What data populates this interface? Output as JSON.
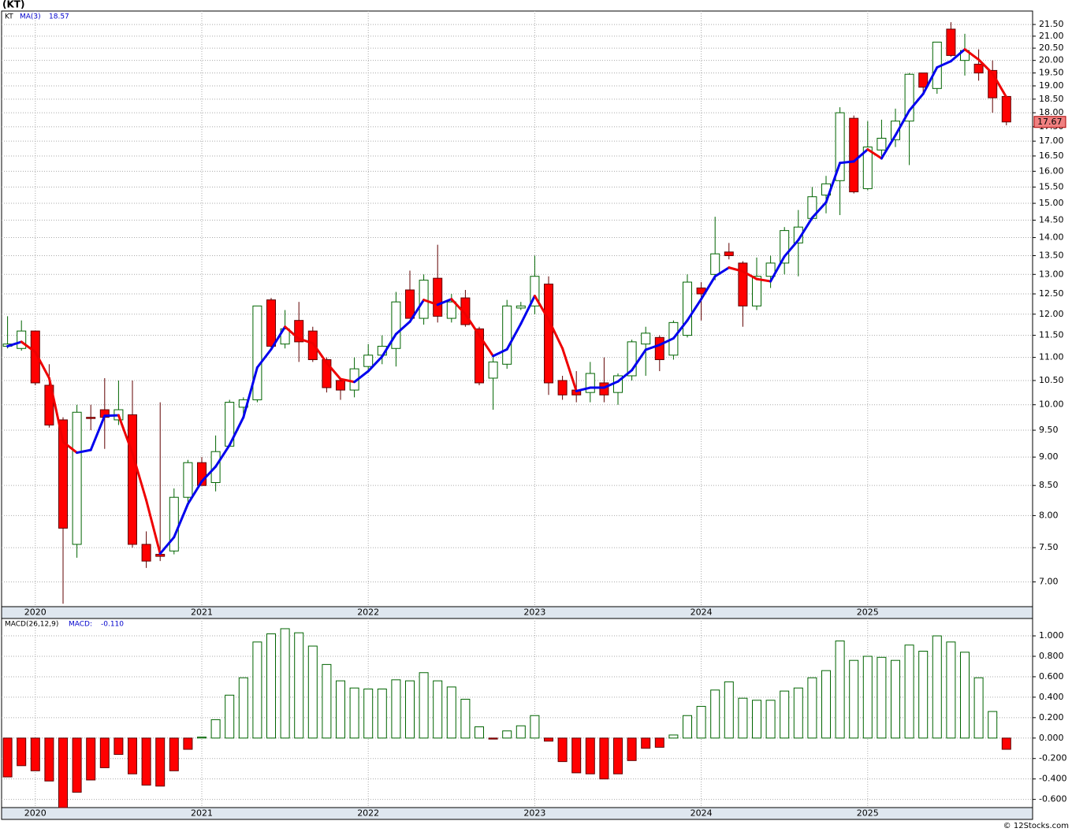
{
  "chart_data": [
    {
      "type": "candlestick",
      "title": "(KT)",
      "log_scale": true,
      "grid": true,
      "categories": [
        null,
        null,
        "2020",
        null,
        null,
        null,
        null,
        null,
        null,
        null,
        null,
        null,
        null,
        null,
        "2021",
        null,
        null,
        null,
        null,
        null,
        null,
        null,
        null,
        null,
        null,
        null,
        "2022",
        null,
        null,
        null,
        null,
        null,
        null,
        null,
        null,
        null,
        null,
        null,
        "2023",
        null,
        null,
        null,
        null,
        null,
        null,
        null,
        null,
        null,
        null,
        null,
        "2024",
        null,
        null,
        null,
        null,
        null,
        null,
        null,
        null,
        null,
        null,
        null,
        "2025",
        null,
        null,
        null,
        null,
        null,
        null,
        null,
        null,
        null,
        null
      ],
      "series": [
        {
          "name": "KT",
          "up_color": "#ffffff",
          "up_edge": "#006400",
          "down_color": "#ff0000",
          "down_edge": "#600000",
          "open": [
            11.25,
            11.2,
            11.6,
            10.4,
            9.7,
            7.55,
            9.75,
            9.9,
            9.7,
            9.8,
            7.55,
            7.4,
            7.45,
            8.3,
            8.9,
            8.55,
            9.2,
            9.95,
            10.1,
            12.35,
            11.3,
            11.85,
            11.6,
            10.95,
            10.5,
            10.3,
            10.8,
            11.05,
            11.2,
            12.6,
            11.9,
            12.9,
            11.9,
            12.4,
            11.65,
            10.55,
            10.85,
            12.15,
            12.2,
            12.75,
            10.5,
            10.3,
            10.25,
            10.45,
            10.25,
            10.6,
            11.3,
            11.45,
            11.05,
            11.5,
            12.65,
            13.0,
            13.6,
            13.3,
            12.2,
            12.95,
            13.3,
            13.85,
            14.55,
            15.25,
            15.7,
            17.8,
            15.45,
            16.7,
            17.05,
            17.7,
            19.5,
            18.9,
            21.3,
            20.0,
            19.85,
            19.6,
            18.6
          ],
          "high": [
            11.95,
            11.85,
            11.6,
            10.85,
            9.75,
            10.0,
            10.0,
            10.55,
            10.5,
            10.5,
            7.75,
            10.05,
            8.45,
            8.95,
            9.0,
            9.4,
            10.1,
            10.15,
            12.2,
            12.4,
            12.1,
            12.3,
            11.7,
            11.0,
            10.55,
            11.0,
            11.3,
            11.5,
            12.55,
            13.1,
            13.0,
            13.8,
            12.5,
            12.6,
            11.7,
            11.0,
            12.35,
            12.3,
            13.5,
            12.95,
            10.6,
            10.7,
            10.9,
            11.0,
            10.65,
            11.4,
            11.7,
            11.5,
            11.85,
            13.0,
            12.8,
            14.6,
            13.85,
            13.35,
            13.45,
            13.5,
            14.3,
            14.8,
            15.5,
            15.85,
            18.2,
            17.9,
            17.7,
            17.75,
            18.15,
            19.5,
            19.5,
            20.75,
            21.6,
            21.1,
            20.45,
            20.0,
            18.6
          ],
          "low": [
            11.2,
            11.15,
            10.4,
            9.55,
            6.7,
            7.35,
            9.5,
            9.15,
            9.6,
            7.5,
            7.2,
            7.3,
            7.4,
            8.2,
            8.5,
            8.4,
            9.2,
            9.75,
            10.05,
            11.2,
            11.2,
            10.9,
            10.9,
            10.25,
            10.1,
            10.15,
            10.7,
            10.85,
            10.8,
            11.9,
            11.75,
            11.8,
            11.8,
            11.7,
            10.4,
            9.9,
            10.75,
            12.1,
            12.0,
            10.2,
            10.1,
            10.05,
            10.05,
            10.05,
            10.0,
            10.5,
            10.6,
            10.7,
            10.95,
            11.45,
            11.85,
            12.85,
            13.4,
            11.7,
            12.1,
            12.65,
            13.0,
            12.95,
            14.5,
            14.7,
            14.65,
            15.3,
            15.4,
            16.5,
            16.8,
            16.2,
            18.7,
            18.7,
            20.15,
            19.4,
            19.2,
            18.0,
            17.55
          ],
          "close": [
            11.3,
            11.6,
            10.45,
            9.6,
            7.8,
            9.85,
            9.73,
            9.75,
            9.9,
            7.55,
            7.3,
            7.37,
            8.3,
            8.9,
            8.5,
            9.1,
            10.05,
            10.1,
            12.2,
            11.25,
            11.65,
            11.35,
            10.95,
            10.35,
            10.3,
            10.75,
            11.05,
            11.25,
            12.3,
            11.9,
            12.85,
            11.95,
            12.3,
            11.75,
            10.45,
            10.9,
            12.2,
            12.2,
            12.95,
            10.45,
            10.2,
            10.2,
            10.65,
            10.2,
            10.6,
            11.35,
            11.55,
            10.95,
            11.8,
            12.8,
            12.5,
            13.55,
            13.5,
            12.2,
            12.95,
            13.3,
            14.2,
            14.3,
            15.2,
            15.6,
            18.0,
            15.35,
            16.8,
            17.1,
            17.7,
            19.45,
            18.95,
            20.75,
            20.2,
            20.4,
            19.5,
            18.55,
            17.67
          ]
        },
        {
          "name": "MA(3)",
          "up_color": "#0000ee",
          "down_color": "#ee0000",
          "values": [
            11.25,
            11.35,
            11.12,
            10.55,
            9.28,
            9.08,
            9.13,
            9.78,
            9.79,
            9.07,
            8.25,
            7.41,
            7.66,
            8.19,
            8.57,
            8.83,
            9.22,
            9.75,
            10.78,
            11.18,
            11.7,
            11.42,
            11.32,
            10.88,
            10.53,
            10.47,
            10.7,
            11.02,
            11.53,
            11.82,
            12.35,
            12.23,
            12.37,
            12.0,
            11.5,
            11.03,
            11.18,
            11.77,
            12.45,
            11.87,
            11.2,
            10.28,
            10.35,
            10.35,
            10.48,
            10.72,
            11.17,
            11.28,
            11.43,
            11.85,
            12.37,
            12.95,
            13.18,
            13.08,
            12.88,
            12.82,
            13.48,
            13.93,
            14.57,
            15.03,
            16.27,
            16.32,
            16.72,
            16.42,
            17.2,
            18.08,
            18.7,
            19.72,
            19.97,
            20.45,
            20.03,
            19.48,
            18.57
          ]
        }
      ],
      "ylim": [
        6.66,
        22.09
      ],
      "yticks": [
        {
          "value": 7,
          "label": "7.00"
        },
        {
          "value": 7.5,
          "label": "7.50"
        },
        {
          "value": 8,
          "label": "8.00"
        },
        {
          "value": 8.5,
          "label": "8.50"
        },
        {
          "value": 9,
          "label": "9.00"
        },
        {
          "value": 9.5,
          "label": "9.50"
        },
        {
          "value": 10,
          "label": "10.00"
        },
        {
          "value": 10.5,
          "label": "10.50"
        },
        {
          "value": 11,
          "label": "11.00"
        },
        {
          "value": 11.5,
          "label": "11.50"
        },
        {
          "value": 12,
          "label": "12.00"
        },
        {
          "value": 12.5,
          "label": "12.50"
        },
        {
          "value": 13,
          "label": "13.00"
        },
        {
          "value": 13.5,
          "label": "13.50"
        },
        {
          "value": 14,
          "label": "14.00"
        },
        {
          "value": 14.5,
          "label": "14.50"
        },
        {
          "value": 15,
          "label": "15.00"
        },
        {
          "value": 15.5,
          "label": "15.50"
        },
        {
          "value": 16,
          "label": "16.00"
        },
        {
          "value": 16.5,
          "label": "16.50"
        },
        {
          "value": 17,
          "label": "17.00"
        },
        {
          "value": 17.5,
          "label": "17.50"
        },
        {
          "value": 18,
          "label": "18.00"
        },
        {
          "value": 18.5,
          "label": "18.50"
        },
        {
          "value": 19,
          "label": "19.00"
        },
        {
          "value": 19.5,
          "label": "19.50"
        },
        {
          "value": 20,
          "label": "20.00"
        },
        {
          "value": 20.5,
          "label": "20.50"
        },
        {
          "value": 21,
          "label": "21.00"
        },
        {
          "value": 21.5,
          "label": "21.50"
        }
      ]
    },
    {
      "type": "bar",
      "grid": true,
      "legend": [
        "MACD(26,12,9)",
        "MACD:",
        "-0.110"
      ],
      "categories": [
        null,
        null,
        "2020",
        null,
        null,
        null,
        null,
        null,
        null,
        null,
        null,
        null,
        null,
        null,
        "2021",
        null,
        null,
        null,
        null,
        null,
        null,
        null,
        null,
        null,
        null,
        null,
        "2022",
        null,
        null,
        null,
        null,
        null,
        null,
        null,
        null,
        null,
        null,
        null,
        "2023",
        null,
        null,
        null,
        null,
        null,
        null,
        null,
        null,
        null,
        null,
        null,
        "2024",
        null,
        null,
        null,
        null,
        null,
        null,
        null,
        null,
        null,
        null,
        null,
        "2025",
        null,
        null,
        null,
        null,
        null,
        null,
        null,
        null,
        null,
        null
      ],
      "positive_color": "#ffffff",
      "positive_edge": "#006400",
      "negative_color": "#ff0000",
      "negative_edge": "#600000",
      "values": [
        -0.38,
        -0.27,
        -0.32,
        -0.42,
        -0.68,
        -0.53,
        -0.41,
        -0.29,
        -0.16,
        -0.35,
        -0.46,
        -0.47,
        -0.32,
        -0.11,
        0.01,
        0.18,
        0.42,
        0.59,
        0.94,
        1.02,
        1.07,
        1.03,
        0.9,
        0.72,
        0.56,
        0.49,
        0.48,
        0.48,
        0.57,
        0.56,
        0.64,
        0.56,
        0.5,
        0.38,
        0.11,
        -0.01,
        0.07,
        0.12,
        0.22,
        -0.03,
        -0.23,
        -0.34,
        -0.35,
        -0.4,
        -0.35,
        -0.22,
        -0.1,
        -0.09,
        0.03,
        0.22,
        0.31,
        0.47,
        0.55,
        0.39,
        0.37,
        0.37,
        0.46,
        0.49,
        0.59,
        0.66,
        0.95,
        0.76,
        0.8,
        0.79,
        0.76,
        0.91,
        0.85,
        1.0,
        0.94,
        0.84,
        0.59,
        0.26,
        -0.11
      ],
      "ylim": [
        -0.68,
        1.17
      ],
      "yticks": [
        {
          "value": -0.6,
          "label": "-0.600"
        },
        {
          "value": -0.4,
          "label": "-0.400"
        },
        {
          "value": -0.2,
          "label": "-0.200"
        },
        {
          "value": 0,
          "label": "0.000"
        },
        {
          "value": 0.2,
          "label": "0.200"
        },
        {
          "value": 0.4,
          "label": "0.400"
        },
        {
          "value": 0.6,
          "label": "0.600"
        },
        {
          "value": 0.8,
          "label": "0.800"
        },
        {
          "value": 1,
          "label": "1.000"
        }
      ]
    }
  ],
  "footer": "© 12Stocks.com"
}
